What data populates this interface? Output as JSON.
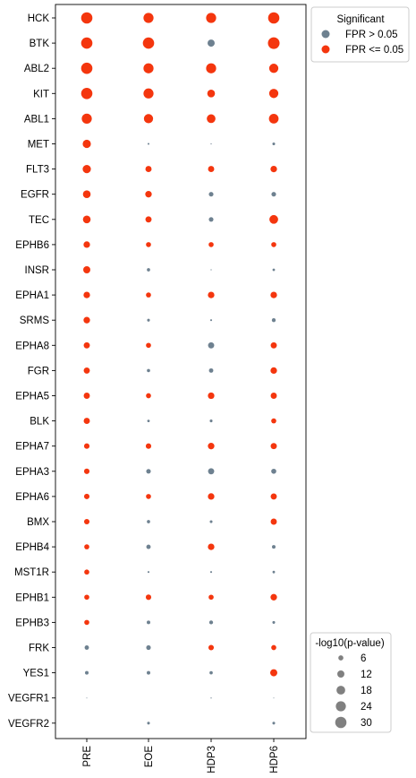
{
  "chart_data": {
    "type": "scatter",
    "x_categories": [
      "PRE",
      "EOE",
      "HDP3",
      "HDP6"
    ],
    "y_categories": [
      "HCK",
      "BTK",
      "ABL2",
      "KIT",
      "ABL1",
      "MET",
      "FLT3",
      "EGFR",
      "TEC",
      "EPHB6",
      "INSR",
      "EPHA1",
      "SRMS",
      "EPHA8",
      "FGR",
      "EPHA5",
      "BLK",
      "EPHA7",
      "EPHA3",
      "EPHA6",
      "BMX",
      "EPHB4",
      "MST1R",
      "EPHB1",
      "EPHB3",
      "FRK",
      "YES1",
      "VEGFR1",
      "VEGFR2"
    ],
    "size_variable": "-log10(p-value)",
    "points": [
      {
        "row": "HCK",
        "values": [
          {
            "size": 30,
            "sig": true
          },
          {
            "size": 24,
            "sig": true
          },
          {
            "size": 24,
            "sig": true
          },
          {
            "size": 30,
            "sig": true
          }
        ]
      },
      {
        "row": "BTK",
        "values": [
          {
            "size": 30,
            "sig": true
          },
          {
            "size": 30,
            "sig": true
          },
          {
            "size": 12,
            "sig": false
          },
          {
            "size": 32,
            "sig": true
          }
        ]
      },
      {
        "row": "ABL2",
        "values": [
          {
            "size": 30,
            "sig": true
          },
          {
            "size": 24,
            "sig": true
          },
          {
            "size": 24,
            "sig": true
          },
          {
            "size": 20,
            "sig": true
          }
        ]
      },
      {
        "row": "KIT",
        "values": [
          {
            "size": 30,
            "sig": true
          },
          {
            "size": 24,
            "sig": true
          },
          {
            "size": 14,
            "sig": true
          },
          {
            "size": 20,
            "sig": true
          }
        ]
      },
      {
        "row": "ABL1",
        "values": [
          {
            "size": 24,
            "sig": true
          },
          {
            "size": 20,
            "sig": true
          },
          {
            "size": 18,
            "sig": true
          },
          {
            "size": 22,
            "sig": true
          }
        ]
      },
      {
        "row": "MET",
        "values": [
          {
            "size": 16,
            "sig": true
          },
          {
            "size": 0.8,
            "sig": false
          },
          {
            "size": 0.3,
            "sig": false
          },
          {
            "size": 1.8,
            "sig": false
          }
        ]
      },
      {
        "row": "FLT3",
        "values": [
          {
            "size": 16,
            "sig": true
          },
          {
            "size": 9,
            "sig": true
          },
          {
            "size": 9,
            "sig": true
          },
          {
            "size": 10,
            "sig": true
          }
        ]
      },
      {
        "row": "EGFR",
        "values": [
          {
            "size": 14,
            "sig": true
          },
          {
            "size": 10,
            "sig": true
          },
          {
            "size": 5,
            "sig": false
          },
          {
            "size": 5,
            "sig": false
          }
        ]
      },
      {
        "row": "TEC",
        "values": [
          {
            "size": 14,
            "sig": true
          },
          {
            "size": 9,
            "sig": true
          },
          {
            "size": 5,
            "sig": false
          },
          {
            "size": 18,
            "sig": true
          }
        ]
      },
      {
        "row": "EPHB6",
        "values": [
          {
            "size": 10,
            "sig": true
          },
          {
            "size": 6,
            "sig": true
          },
          {
            "size": 6,
            "sig": true
          },
          {
            "size": 6,
            "sig": true
          }
        ]
      },
      {
        "row": "INSR",
        "values": [
          {
            "size": 12,
            "sig": true
          },
          {
            "size": 2.5,
            "sig": false
          },
          {
            "size": 0.3,
            "sig": false
          },
          {
            "size": 1.5,
            "sig": false
          }
        ]
      },
      {
        "row": "EPHA1",
        "values": [
          {
            "size": 10,
            "sig": true
          },
          {
            "size": 6,
            "sig": true
          },
          {
            "size": 10,
            "sig": true
          },
          {
            "size": 10,
            "sig": true
          }
        ]
      },
      {
        "row": "SRMS",
        "values": [
          {
            "size": 10,
            "sig": true
          },
          {
            "size": 1.8,
            "sig": false
          },
          {
            "size": 0.8,
            "sig": false
          },
          {
            "size": 3.5,
            "sig": false
          }
        ]
      },
      {
        "row": "EPHA8",
        "values": [
          {
            "size": 9,
            "sig": true
          },
          {
            "size": 6,
            "sig": true
          },
          {
            "size": 9,
            "sig": false
          },
          {
            "size": 9,
            "sig": true
          }
        ]
      },
      {
        "row": "FGR",
        "values": [
          {
            "size": 9,
            "sig": true
          },
          {
            "size": 2.5,
            "sig": false
          },
          {
            "size": 4.5,
            "sig": false
          },
          {
            "size": 10,
            "sig": true
          }
        ]
      },
      {
        "row": "EPHA5",
        "values": [
          {
            "size": 9,
            "sig": true
          },
          {
            "size": 6,
            "sig": true
          },
          {
            "size": 10,
            "sig": true
          },
          {
            "size": 9,
            "sig": true
          }
        ]
      },
      {
        "row": "BLK",
        "values": [
          {
            "size": 9,
            "sig": true
          },
          {
            "size": 1.5,
            "sig": false
          },
          {
            "size": 1.8,
            "sig": false
          },
          {
            "size": 6,
            "sig": true
          }
        ]
      },
      {
        "row": "EPHA7",
        "values": [
          {
            "size": 7,
            "sig": true
          },
          {
            "size": 7,
            "sig": true
          },
          {
            "size": 10,
            "sig": true
          },
          {
            "size": 9,
            "sig": true
          }
        ]
      },
      {
        "row": "EPHA3",
        "values": [
          {
            "size": 7,
            "sig": true
          },
          {
            "size": 5,
            "sig": false
          },
          {
            "size": 9,
            "sig": false
          },
          {
            "size": 6,
            "sig": false
          }
        ]
      },
      {
        "row": "EPHA6",
        "values": [
          {
            "size": 7,
            "sig": true
          },
          {
            "size": 6,
            "sig": true
          },
          {
            "size": 10,
            "sig": true
          },
          {
            "size": 9,
            "sig": true
          }
        ]
      },
      {
        "row": "BMX",
        "values": [
          {
            "size": 7,
            "sig": true
          },
          {
            "size": 2.5,
            "sig": false
          },
          {
            "size": 1.8,
            "sig": false
          },
          {
            "size": 9,
            "sig": true
          }
        ]
      },
      {
        "row": "EPHB4",
        "values": [
          {
            "size": 6,
            "sig": true
          },
          {
            "size": 4.5,
            "sig": false
          },
          {
            "size": 10,
            "sig": true
          },
          {
            "size": 3,
            "sig": false
          }
        ]
      },
      {
        "row": "MST1R",
        "values": [
          {
            "size": 6,
            "sig": true
          },
          {
            "size": 0.8,
            "sig": false
          },
          {
            "size": 0.8,
            "sig": false
          },
          {
            "size": 1.5,
            "sig": false
          }
        ]
      },
      {
        "row": "EPHB1",
        "values": [
          {
            "size": 6,
            "sig": true
          },
          {
            "size": 7,
            "sig": true
          },
          {
            "size": 6,
            "sig": true
          },
          {
            "size": 10,
            "sig": true
          }
        ]
      },
      {
        "row": "EPHB3",
        "values": [
          {
            "size": 6,
            "sig": true
          },
          {
            "size": 3,
            "sig": false
          },
          {
            "size": 3.5,
            "sig": false
          },
          {
            "size": 1.8,
            "sig": false
          }
        ]
      },
      {
        "row": "FRK",
        "values": [
          {
            "size": 4.5,
            "sig": false
          },
          {
            "size": 5,
            "sig": false
          },
          {
            "size": 7,
            "sig": true
          },
          {
            "size": 6,
            "sig": true
          }
        ]
      },
      {
        "row": "YES1",
        "values": [
          {
            "size": 3,
            "sig": false
          },
          {
            "size": 3,
            "sig": false
          },
          {
            "size": 2.5,
            "sig": false
          },
          {
            "size": 12,
            "sig": true
          }
        ]
      },
      {
        "row": "VEGFR1",
        "values": [
          {
            "size": 0.2,
            "sig": false
          },
          null,
          {
            "size": 0.3,
            "sig": false
          },
          {
            "size": 0.2,
            "sig": false
          }
        ]
      },
      {
        "row": "VEGFR2",
        "values": [
          null,
          {
            "size": 1.8,
            "sig": false
          },
          null,
          {
            "size": 1.8,
            "sig": false
          }
        ]
      }
    ],
    "legend_significance": {
      "title": "Significant",
      "entries": [
        {
          "label": "FPR > 0.05",
          "color": "#6e8190"
        },
        {
          "label": "FPR <= 0.05",
          "color": "#f4360e"
        }
      ]
    },
    "legend_size": {
      "title": "-log10(p-value)",
      "entries": [
        6,
        12,
        18,
        24,
        30
      ],
      "color": "#808080"
    },
    "colors": {
      "significant": "#f4360e",
      "not_significant": "#6e8190"
    },
    "grid": false
  }
}
